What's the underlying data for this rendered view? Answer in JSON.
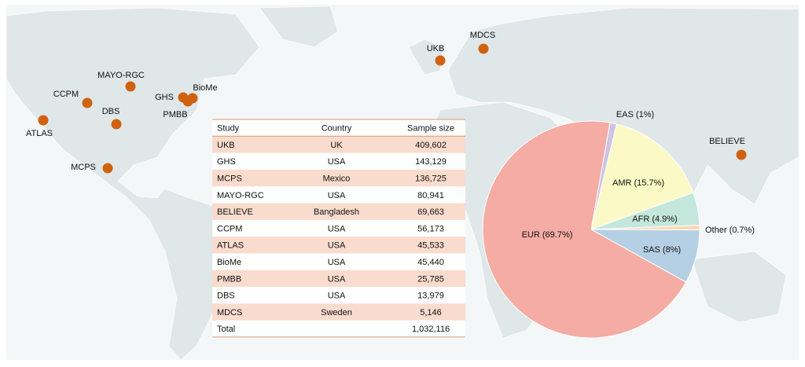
{
  "map": {
    "sites": [
      {
        "label": "ATLAS"
      },
      {
        "label": "CCPM"
      },
      {
        "label": "MAYO-RGC"
      },
      {
        "label": "DBS"
      },
      {
        "label": "GHS"
      },
      {
        "label": "BioMe"
      },
      {
        "label": "PMBB"
      },
      {
        "label": "MCPS"
      },
      {
        "label": "UKB"
      },
      {
        "label": "MDCS"
      },
      {
        "label": "BELIEVE"
      }
    ]
  },
  "table": {
    "header": [
      "Study",
      "Country",
      "Sample size"
    ],
    "rows": [
      [
        "UKB",
        "UK",
        "409,602"
      ],
      [
        "GHS",
        "USA",
        "143,129"
      ],
      [
        "MCPS",
        "Mexico",
        "136,725"
      ],
      [
        "MAYO-RGC",
        "USA",
        "80,941"
      ],
      [
        "BELIEVE",
        "Bangladesh",
        "69,663"
      ],
      [
        "CCPM",
        "USA",
        "56,173"
      ],
      [
        "ATLAS",
        "USA",
        "45,533"
      ],
      [
        "BioMe",
        "USA",
        "45,440"
      ],
      [
        "PMBB",
        "USA",
        "25,785"
      ],
      [
        "DBS",
        "USA",
        "13,979"
      ],
      [
        "MDCS",
        "Sweden",
        "5,146"
      ],
      [
        "Total",
        "",
        "1,032,116"
      ]
    ]
  },
  "chart_data": {
    "type": "pie",
    "categories": [
      "EAS (1%)",
      "AMR (15.7%)",
      "AFR (4.9%)",
      "Other (0.7%)",
      "SAS (8%)",
      "EUR (69.7%)"
    ],
    "values": [
      1,
      15.7,
      4.9,
      0.7,
      8,
      69.7
    ],
    "colors": [
      "#cdc4e2",
      "#fbfac6",
      "#c4e7dc",
      "#fcd7b2",
      "#b5d0e4",
      "#f4aca4"
    ]
  }
}
